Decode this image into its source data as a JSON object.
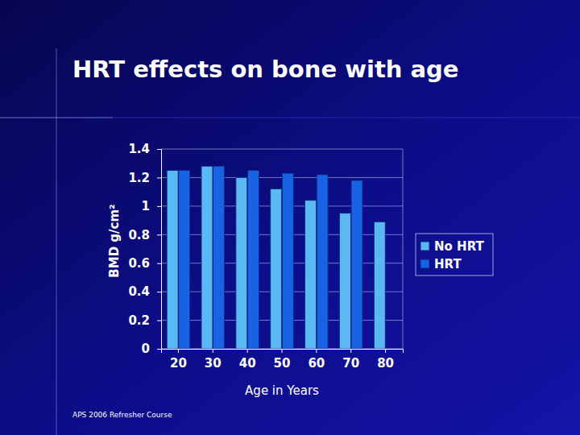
{
  "chart_data": {
    "type": "bar",
    "title": "HRT effects on bone with age",
    "x_label": "Age in Years",
    "y_label": "BMD g/cm²",
    "source": "APS 2006 Refresher Course",
    "categories": [
      "20",
      "30",
      "40",
      "50",
      "60",
      "70",
      "80"
    ],
    "series": [
      {
        "name": "No HRT",
        "color": "#5ab8f2",
        "values": [
          1.25,
          1.28,
          1.2,
          1.12,
          1.04,
          0.95,
          0.89
        ]
      },
      {
        "name": "HRT",
        "color": "#1763e3",
        "values": [
          1.25,
          1.28,
          1.25,
          1.23,
          1.22,
          1.18,
          null
        ]
      }
    ],
    "ylim": [
      0,
      1.4
    ],
    "yticks": [
      0,
      0.2,
      0.4,
      0.6,
      0.8,
      1,
      1.2,
      1.4
    ],
    "grid": true,
    "legend": "right"
  }
}
